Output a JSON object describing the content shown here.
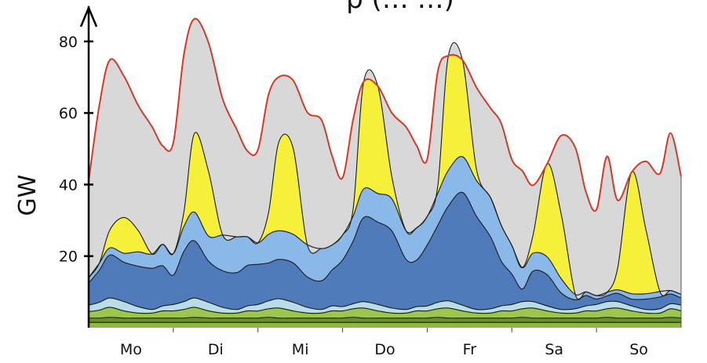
{
  "chart_data": {
    "type": "area",
    "title": "p (… …)",
    "xlabel": "",
    "ylabel": "GW",
    "ylim": [
      0,
      85
    ],
    "y_ticks": [
      20,
      40,
      60,
      80
    ],
    "categories": [
      "Mo",
      "Di",
      "Mi",
      "Do",
      "Fr",
      "Sa",
      "So"
    ],
    "xlim": [
      0,
      168
    ],
    "grid": false,
    "legend": "none",
    "x": [
      0,
      3,
      6,
      10,
      14,
      18,
      21,
      24,
      27,
      30,
      34,
      38,
      42,
      45,
      48,
      51,
      54,
      58,
      62,
      66,
      69,
      72,
      75,
      78,
      82,
      86,
      90,
      93,
      96,
      99,
      102,
      106,
      110,
      114,
      117,
      120,
      123,
      126,
      130,
      134,
      138,
      141,
      144,
      147,
      150,
      154,
      158,
      162,
      165,
      168
    ],
    "series": [
      {
        "name": "",
        "color": "#8db845",
        "values": [
          1.5,
          1.5,
          1.5,
          1.5,
          1.5,
          1.5,
          1.5,
          1.5,
          1.5,
          1.5,
          1.5,
          1.5,
          1.5,
          1.5,
          1.5,
          1.5,
          1.5,
          1.5,
          1.5,
          1.5,
          1.5,
          1.5,
          1.5,
          1.5,
          1.5,
          1.5,
          1.5,
          1.5,
          1.5,
          1.5,
          1.5,
          1.5,
          1.5,
          1.5,
          1.5,
          1.5,
          1.5,
          1.5,
          1.5,
          1.5,
          1.5,
          1.5,
          1.5,
          1.5,
          1.5,
          1.5,
          1.5,
          1.5,
          1.5,
          1.5
        ]
      },
      {
        "name": "",
        "color": "#6b8f2a",
        "values": [
          1.2,
          1.2,
          1.4,
          1.2,
          1.2,
          1.2,
          1.2,
          1.2,
          1.2,
          1.4,
          1.2,
          1.2,
          1.2,
          1.2,
          1.2,
          1.4,
          1.2,
          1.2,
          1.2,
          1.2,
          1.2,
          1.2,
          1.4,
          1.2,
          1.2,
          1.2,
          1.2,
          1.2,
          1.2,
          1.4,
          1.2,
          1.2,
          1.2,
          1.2,
          1.2,
          1.2,
          1.4,
          1.2,
          1.2,
          1.2,
          1.2,
          1.2,
          1.2,
          1.4,
          1.2,
          1.2,
          1.2,
          1.2,
          1.4,
          1.2
        ]
      },
      {
        "name": "",
        "color": "#9bc64f",
        "values": [
          1.8,
          2.2,
          2.8,
          2.0,
          1.4,
          1.4,
          2.0,
          2.0,
          2.4,
          2.8,
          2.0,
          1.4,
          1.4,
          2.0,
          2.0,
          2.4,
          2.8,
          2.0,
          1.4,
          1.4,
          2.0,
          2.0,
          2.4,
          2.8,
          2.0,
          1.4,
          1.4,
          2.0,
          2.0,
          2.4,
          2.8,
          2.0,
          1.4,
          1.4,
          2.0,
          2.0,
          2.4,
          2.8,
          2.0,
          1.4,
          1.4,
          2.0,
          2.0,
          2.4,
          2.8,
          2.0,
          1.4,
          1.4,
          2.4,
          2.0
        ]
      },
      {
        "name": "",
        "color": "#b8dde8",
        "values": [
          1.8,
          2.2,
          2.6,
          2.6,
          1.8,
          1.0,
          1.4,
          1.8,
          2.2,
          2.6,
          2.4,
          1.6,
          1.0,
          1.4,
          1.8,
          2.2,
          2.6,
          2.4,
          1.6,
          1.0,
          1.4,
          1.2,
          1.4,
          1.8,
          1.8,
          1.4,
          1.0,
          1.2,
          1.4,
          1.8,
          2.0,
          1.6,
          1.0,
          1.2,
          1.4,
          1.8,
          2.0,
          1.8,
          1.4,
          1.0,
          1.2,
          1.4,
          1.8,
          2.0,
          1.8,
          1.4,
          1.0,
          1.2,
          1.4,
          1.6
        ]
      },
      {
        "name": "",
        "color": "#4f7bbb",
        "values": [
          6.2,
          8.9,
          12.0,
          11.0,
          11.3,
          11.5,
          11.2,
          8.2,
          14.0,
          16.0,
          11.5,
          10.2,
          10.3,
          11.3,
          11.2,
          10.6,
          11.0,
          11.0,
          8.5,
          8.0,
          10.0,
          13.0,
          17.5,
          23.5,
          23.0,
          21.5,
          14.0,
          13.0,
          17.0,
          21.5,
          26.5,
          31.5,
          26.0,
          20.0,
          12.5,
          8.5,
          3.5,
          8.5,
          8.7,
          4.6,
          2.5,
          2.9,
          1.5,
          1.6,
          2.3,
          1.9,
          2.9,
          3.3,
          2.7,
          2.0
        ]
      },
      {
        "name": "",
        "color": "#8ab8e8",
        "values": [
          1.5,
          2.0,
          2.0,
          2.5,
          4.0,
          4.0,
          6.0,
          6.0,
          7.0,
          8.0,
          7.0,
          10.0,
          10.0,
          8.0,
          6.0,
          8.0,
          8.0,
          8.0,
          9.0,
          9.0,
          7.0,
          7.0,
          7.0,
          8.0,
          8.0,
          9.0,
          8.0,
          9.0,
          8.0,
          9.0,
          10.0,
          10.0,
          10.0,
          11.0,
          10.0,
          8.0,
          6.0,
          5.0,
          5.0,
          4.0,
          1.5,
          1.0,
          1.0,
          1.0,
          1.0,
          1.5,
          1.5,
          1.5,
          1.0,
          1.0
        ]
      },
      {
        "name": "",
        "color": "#f7f03a",
        "values": [
          0,
          0,
          5.0,
          10.0,
          6.0,
          0,
          0,
          0,
          4.0,
          22.0,
          18.0,
          0,
          0,
          0,
          0,
          6.0,
          25.0,
          24.0,
          0,
          0,
          0,
          0,
          2.0,
          30.0,
          30.0,
          6.0,
          0,
          0,
          0,
          2.0,
          32.0,
          27.0,
          3.0,
          0,
          0,
          0,
          0,
          5.0,
          26.0,
          18.0,
          0,
          0,
          0,
          0,
          6.0,
          34.0,
          18.0,
          0,
          0,
          0
        ]
      },
      {
        "name": "",
        "color": "#d8d8d8",
        "values": [
          27.0,
          44.0,
          47.5,
          39.5,
          35.0,
          35.5,
          27.5,
          31.0,
          44.0,
          32.0,
          36.0,
          38.0,
          30.0,
          24.0,
          26.0,
          33.0,
          18.0,
          19.0,
          37.0,
          36.0,
          25.0,
          16.0,
          25.0,
          0,
          0,
          18.0,
          29.0,
          23.0,
          16.0,
          32.0,
          0,
          0,
          23.0,
          25.0,
          28.5,
          24.0,
          27.0,
          14.0,
          0,
          22.0,
          41.0,
          28.0,
          24.0,
          38.0,
          19.0,
          0,
          19.0,
          33.0,
          44.0,
          33.0
        ]
      }
    ],
    "series_count": 8,
    "outline_series": {
      "name": "",
      "color": "#d23b2a"
    }
  }
}
